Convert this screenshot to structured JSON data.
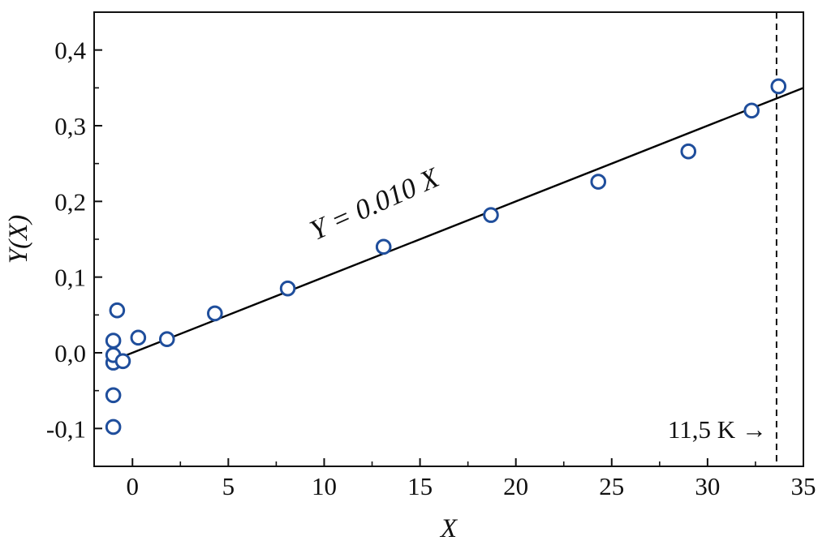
{
  "chart_data": {
    "type": "scatter",
    "title": "",
    "xlabel": "X",
    "ylabel": "Y(X)",
    "xlim": [
      -2,
      35
    ],
    "ylim": [
      -0.15,
      0.45
    ],
    "x_ticks": [
      0,
      5,
      10,
      15,
      20,
      25,
      30,
      35
    ],
    "x_tick_labels": [
      "0",
      "5",
      "10",
      "15",
      "20",
      "25",
      "30",
      "35"
    ],
    "y_ticks": [
      -0.1,
      0.0,
      0.1,
      0.2,
      0.3,
      0.4
    ],
    "y_tick_labels": [
      "-0,1",
      "0,0",
      "0,1",
      "0,2",
      "0,3",
      "0,4"
    ],
    "grid": false,
    "series": [
      {
        "type": "scatter",
        "marker": "open-circle",
        "color": "#1f4e9c",
        "points": [
          {
            "x": -1.0,
            "y": -0.098
          },
          {
            "x": -1.0,
            "y": -0.056
          },
          {
            "x": -1.0,
            "y": -0.013
          },
          {
            "x": -1.0,
            "y": -0.003
          },
          {
            "x": -1.0,
            "y": 0.016
          },
          {
            "x": -0.8,
            "y": 0.056
          },
          {
            "x": -0.5,
            "y": -0.011
          },
          {
            "x": 0.3,
            "y": 0.02
          },
          {
            "x": 1.8,
            "y": 0.018
          },
          {
            "x": 4.3,
            "y": 0.052
          },
          {
            "x": 8.1,
            "y": 0.085
          },
          {
            "x": 13.1,
            "y": 0.14
          },
          {
            "x": 18.7,
            "y": 0.182
          },
          {
            "x": 24.3,
            "y": 0.226
          },
          {
            "x": 29.0,
            "y": 0.266
          },
          {
            "x": 32.3,
            "y": 0.32
          },
          {
            "x": 33.7,
            "y": 0.352
          }
        ]
      },
      {
        "type": "line",
        "color": "#000000",
        "equation": "Y = 0.010 X",
        "points": [
          {
            "x": -0.5,
            "y": -0.005
          },
          {
            "x": 35.0,
            "y": 0.35
          }
        ]
      }
    ],
    "annotations": {
      "fit_label": "Y = 0.010 X",
      "threshold_x": 33.6,
      "threshold_label": "11,5 K →"
    }
  }
}
